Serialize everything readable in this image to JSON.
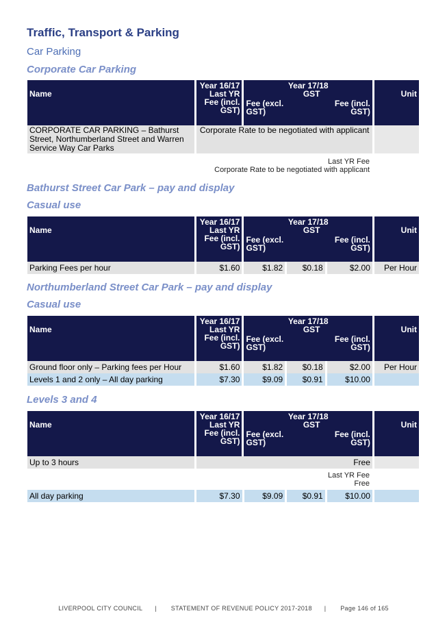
{
  "title": "Traffic, Transport & Parking",
  "subtitle": "Car Parking",
  "headers": {
    "name": "Name",
    "year_prev": "Year 16/17",
    "last_yr_fee": "Last YR Fee (incl. GST)",
    "year_curr": "Year 17/18",
    "fee_excl": "Fee (excl. GST)",
    "gst": "GST",
    "fee_incl": "Fee (incl. GST)",
    "unit": "Unit"
  },
  "sections": {
    "corporate": {
      "heading": "Corporate Car Parking",
      "row_name": "CORPORATE CAR PARKING – Bathurst Street, Northumberland Street and Warren Service Way Car Parks",
      "row_value": "Corporate Rate to be negotiated with applicant",
      "note_label": "Last YR Fee",
      "note_value": "Corporate Rate to be negotiated with applicant"
    },
    "bathurst": {
      "heading": "Bathurst Street Car Park – pay and display",
      "subheading": "Casual use",
      "rows": [
        {
          "name": "Parking Fees per hour",
          "last": "$1.60",
          "fee": "$1.82",
          "gst": "$0.18",
          "incl": "$2.00",
          "unit": "Per Hour"
        }
      ]
    },
    "northumberland": {
      "heading": "Northumberland Street Car Park – pay and display",
      "subheading": "Casual use",
      "rows": [
        {
          "name": "Ground floor only – Parking fees per Hour",
          "last": "$1.60",
          "fee": "$1.82",
          "gst": "$0.18",
          "incl": "$2.00",
          "unit": "Per Hour"
        },
        {
          "name": "Levels 1 and 2 only – All day parking",
          "last": "$7.30",
          "fee": "$9.09",
          "gst": "$0.91",
          "incl": "$10.00",
          "unit": ""
        }
      ]
    },
    "levels34": {
      "heading": "Levels 3 and 4",
      "row1_name": "Up to 3 hours",
      "row1_incl": "Free",
      "note_label": "Last YR Fee",
      "note_value": "Free",
      "row2": {
        "name": "All day parking",
        "last": "$7.30",
        "fee": "$9.09",
        "gst": "$0.91",
        "incl": "$10.00",
        "unit": ""
      }
    }
  },
  "footer": {
    "org": "LIVERPOOL CITY COUNCIL",
    "doc": "STATEMENT OF REVENUE POLICY 2017-2018",
    "page": "Page 146 of 165"
  }
}
